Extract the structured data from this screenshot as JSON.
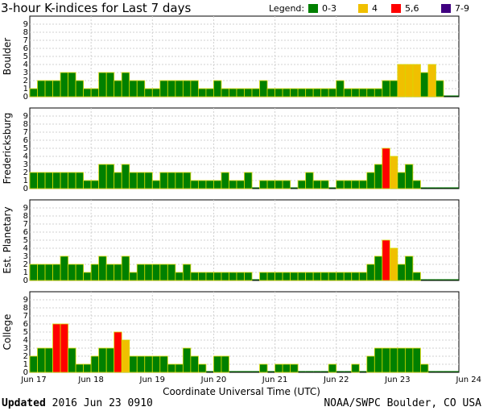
{
  "chart_data": {
    "type": "bar",
    "title": "3-hour K-indices for Last 7 days",
    "legend": {
      "label": "Legend:",
      "placement": "top-right",
      "entries": [
        {
          "label": "0-3",
          "color": "#008000"
        },
        {
          "label": "4",
          "color": "#f0c000"
        },
        {
          "label": "5,6",
          "color": "#ff0000"
        },
        {
          "label": "7-9",
          "color": "#400080"
        }
      ]
    },
    "xlabel": "Coordinate Universal Time (UTC)",
    "x_ticks": [
      "Jun 17",
      "Jun 18",
      "Jun 19",
      "Jun 20",
      "Jun 21",
      "Jun 22",
      "Jun 23",
      "Jun 24"
    ],
    "ylim": [
      0,
      9
    ],
    "y_ticks": [
      "0",
      "1",
      "2",
      "3",
      "4",
      "5",
      "6",
      "7",
      "8",
      "9"
    ],
    "grid": true,
    "intervals_per_panel": 56,
    "panels": [
      {
        "name": "Boulder",
        "values": [
          1,
          2,
          2,
          2,
          3,
          3,
          2,
          1,
          1,
          3,
          3,
          2,
          3,
          2,
          2,
          1,
          1,
          2,
          2,
          2,
          2,
          2,
          1,
          1,
          2,
          1,
          1,
          1,
          1,
          1,
          2,
          1,
          1,
          1,
          1,
          1,
          1,
          1,
          1,
          1,
          2,
          1,
          1,
          1,
          1,
          1,
          2,
          2,
          4,
          4,
          4,
          3,
          4,
          2,
          0,
          0
        ]
      },
      {
        "name": "Fredericksburg",
        "values": [
          2,
          2,
          2,
          2,
          2,
          2,
          2,
          1,
          1,
          3,
          3,
          2,
          3,
          2,
          2,
          2,
          1,
          2,
          2,
          2,
          2,
          1,
          1,
          1,
          1,
          2,
          1,
          1,
          2,
          0,
          1,
          1,
          1,
          1,
          0,
          1,
          2,
          1,
          1,
          0,
          1,
          1,
          1,
          1,
          2,
          3,
          5,
          4,
          2,
          3,
          1,
          0,
          0,
          0,
          0,
          0
        ]
      },
      {
        "name": "Est. Planetary",
        "values": [
          2,
          2,
          2,
          2,
          3,
          2,
          2,
          1,
          2,
          3,
          2,
          2,
          3,
          1,
          2,
          2,
          2,
          2,
          2,
          1,
          2,
          1,
          1,
          1,
          1,
          1,
          1,
          1,
          1,
          0,
          1,
          1,
          1,
          1,
          1,
          1,
          1,
          1,
          1,
          1,
          1,
          1,
          1,
          1,
          2,
          3,
          5,
          4,
          2,
          3,
          1,
          0,
          0,
          0,
          0,
          0
        ]
      },
      {
        "name": "College",
        "values": [
          2,
          3,
          3,
          6,
          6,
          3,
          1,
          1,
          2,
          3,
          3,
          5,
          4,
          2,
          2,
          2,
          2,
          2,
          1,
          1,
          3,
          2,
          1,
          0,
          2,
          2,
          0,
          0,
          0,
          0,
          1,
          0,
          1,
          1,
          1,
          0,
          0,
          0,
          0,
          1,
          0,
          0,
          1,
          0,
          2,
          3,
          3,
          3,
          3,
          3,
          3,
          1,
          0,
          0,
          0,
          0
        ]
      }
    ]
  },
  "footer": {
    "updated_label": "Updated",
    "updated_value": "2016 Jun 23 0910",
    "source": "NOAA/SWPC Boulder, CO USA"
  }
}
